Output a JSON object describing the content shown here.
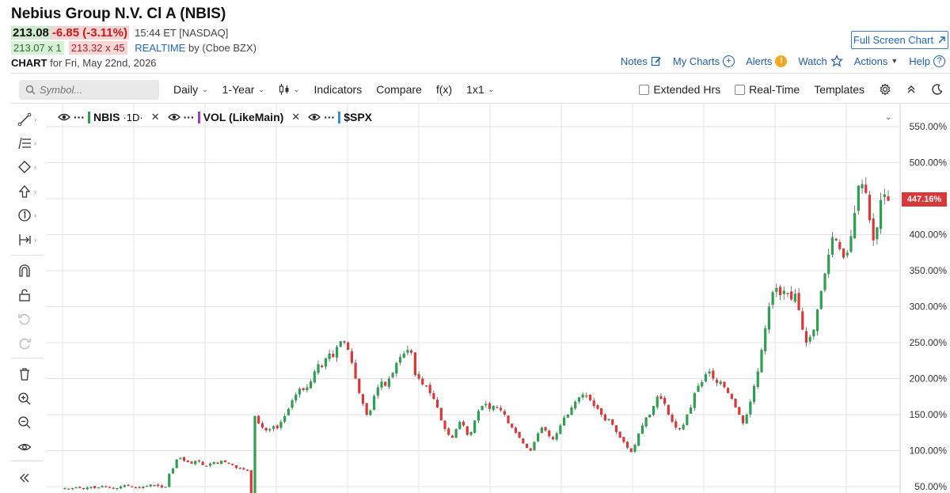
{
  "header": {
    "title": "Nebius Group N.V. Cl A (NBIS)",
    "last": "213.08",
    "change": "-6.85 (-3.11%)",
    "time_exchange": "15:44 ET [NASDAQ]",
    "bid": "213.07 x 1",
    "ask": "213.32 x 45",
    "realtime": "REALTIME",
    "realtime_source": "by (Cboe BZX)",
    "chart_label": "CHART",
    "chart_for": "for Fri, May 22nd, 2026",
    "full_screen": "Full Screen Chart"
  },
  "top_links": {
    "notes": "Notes",
    "my_charts": "My Charts",
    "alerts": "Alerts",
    "watch": "Watch",
    "actions": "Actions",
    "help": "Help"
  },
  "toolbar": {
    "search_placeholder": "Symbol...",
    "period": "Daily",
    "range": "1-Year",
    "indicators": "Indicators",
    "compare": "Compare",
    "fx": "f(x)",
    "layout": "1x1",
    "extended_hrs": "Extended Hrs",
    "real_time": "Real-Time",
    "templates": "Templates"
  },
  "legend": [
    {
      "name": "NBIS",
      "suffix": "·1D·",
      "color": "#2e9e4f"
    },
    {
      "name": "VOL (LikeMain)",
      "suffix": "",
      "color": "#9b3fc4"
    },
    {
      "name": "$SPX",
      "suffix": "",
      "color": "#3b8fd9"
    }
  ],
  "last_price_label": "447.16%",
  "colors": {
    "up": "#2e9e4f",
    "down": "#d93838",
    "accent": "#1f5fa8",
    "grid": "#e3e3e3"
  },
  "chart_data": {
    "type": "candlestick",
    "y_unit": "percent change",
    "ylim": [
      45,
      570
    ],
    "y_ticks": [
      "550.00%",
      "500.00%",
      "450.00%",
      "400.00%",
      "350.00%",
      "300.00%",
      "250.00%",
      "200.00%",
      "150.00%",
      "100.00%",
      "50.00%"
    ],
    "last_value": 447.16,
    "closes": [
      48,
      47,
      48,
      49,
      48,
      47,
      49,
      50,
      48,
      49,
      51,
      50,
      49,
      47,
      48,
      50,
      52,
      51,
      50,
      49,
      48,
      50,
      51,
      53,
      52,
      51,
      49,
      50,
      68,
      75,
      88,
      90,
      86,
      84,
      82,
      86,
      85,
      80,
      79,
      82,
      84,
      82,
      86,
      84,
      82,
      80,
      76,
      75,
      74,
      72,
      40,
      148,
      138,
      132,
      128,
      130,
      134,
      131,
      140,
      148,
      158,
      170,
      178,
      186,
      184,
      188,
      196,
      210,
      220,
      216,
      228,
      235,
      230,
      244,
      252,
      250,
      240,
      222,
      200,
      180,
      165,
      150,
      156,
      176,
      188,
      196,
      190,
      200,
      208,
      222,
      230,
      235,
      240,
      236,
      205,
      200,
      192,
      190,
      180,
      172,
      160,
      142,
      130,
      122,
      118,
      130,
      140,
      135,
      122,
      126,
      142,
      155,
      162,
      165,
      158,
      162,
      160,
      156,
      150,
      138,
      132,
      125,
      118,
      110,
      104,
      100,
      112,
      124,
      132,
      128,
      120,
      116,
      124,
      135,
      146,
      150,
      160,
      168,
      174,
      178,
      176,
      170,
      162,
      158,
      150,
      142,
      144,
      136,
      126,
      118,
      112,
      104,
      98,
      108,
      124,
      135,
      146,
      150,
      162,
      175,
      172,
      165,
      150,
      140,
      132,
      130,
      136,
      150,
      160,
      180,
      190,
      195,
      206,
      210,
      200,
      194,
      196,
      188,
      180,
      172,
      160,
      150,
      138,
      150,
      168,
      190,
      210,
      240,
      270,
      300,
      320,
      326,
      316,
      322,
      318,
      310,
      318,
      295,
      268,
      250,
      258,
      268,
      296,
      322,
      346,
      372,
      396,
      392,
      380,
      368,
      375,
      398,
      430,
      468,
      470,
      458,
      420,
      392,
      410,
      448,
      456,
      447
    ]
  }
}
